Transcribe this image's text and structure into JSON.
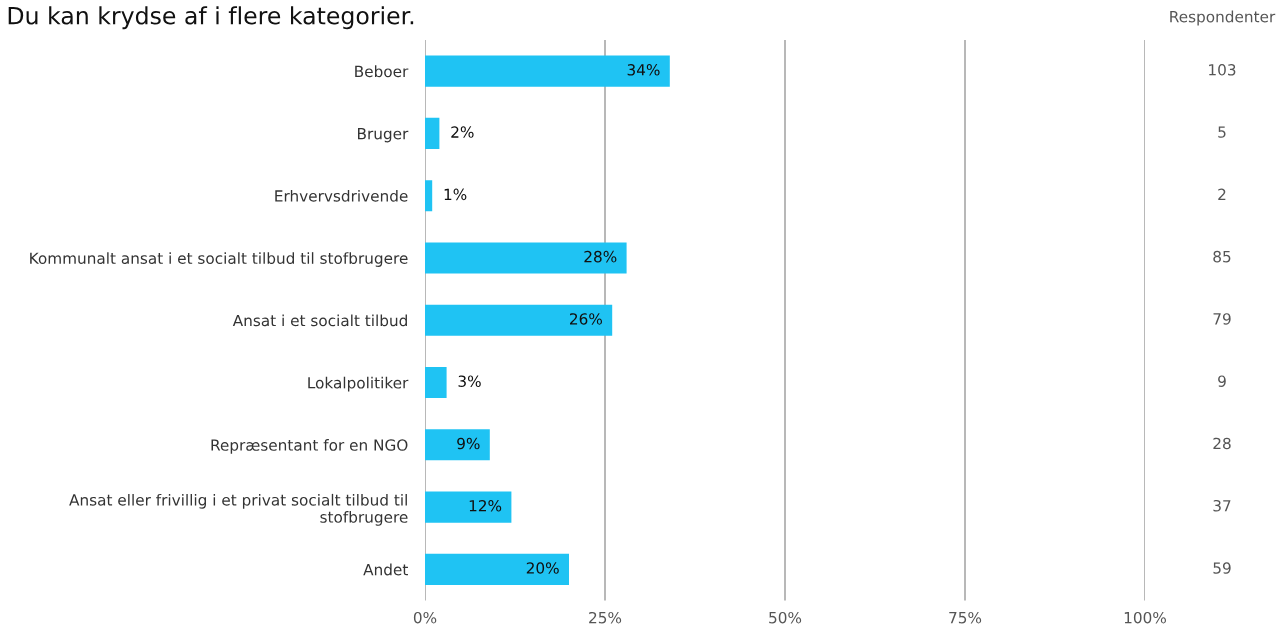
{
  "chart_data": {
    "type": "bar",
    "orientation": "horizontal",
    "title": "Du kan krydse af i flere kategorier.",
    "categories": [
      "Beboer",
      "Bruger",
      "Erhvervsdrivende",
      "Kommunalt ansat i et socialt tilbud til stofbrugere",
      "Ansat i et socialt tilbud",
      "Lokalpolitiker",
      "Repræsentant for en NGO",
      "Ansat eller frivillig i et privat socialt tilbud til\nstofbrugere",
      "Andet"
    ],
    "values": [
      34,
      2,
      1,
      28,
      26,
      3,
      9,
      12,
      20
    ],
    "value_labels": [
      "34%",
      "2%",
      "1%",
      "28%",
      "26%",
      "3%",
      "9%",
      "12%",
      "20%"
    ],
    "color": "#1fc3f3",
    "xlim": [
      0,
      100
    ],
    "xticks": [
      {
        "value": 0,
        "label": "0%"
      },
      {
        "value": 25,
        "label": "25%"
      },
      {
        "value": 50,
        "label": "50%"
      },
      {
        "value": 75,
        "label": "75%"
      },
      {
        "value": 100,
        "label": "100%"
      }
    ],
    "grid": "x",
    "y2label": "Respondenter",
    "annotations": [
      "103",
      "5",
      "2",
      "85",
      "79",
      "9",
      "28",
      "37",
      "59"
    ]
  }
}
